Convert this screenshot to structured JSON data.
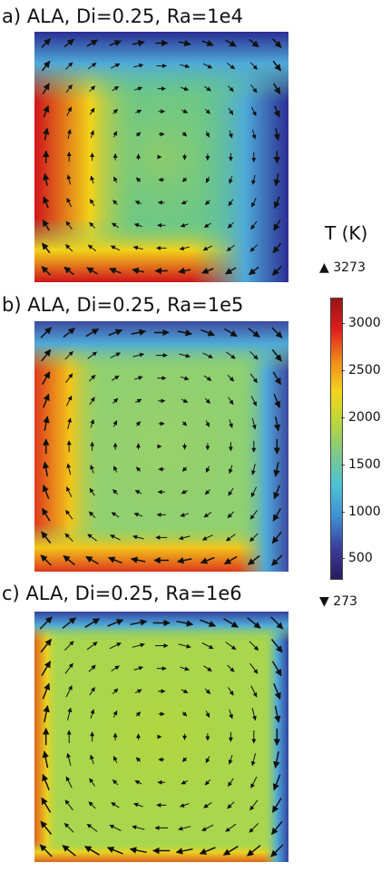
{
  "chart_data": [
    {
      "type": "heatmap",
      "title": "a) ALA, Di=0.25, Ra=1e4",
      "colors": {
        "bg": "#67c78a",
        "hot": "#d0141c",
        "cold": "#2b2e93",
        "warm": "#f2d21a",
        "center": "#8ecb6c"
      },
      "hot_width": 0.22,
      "hot_bottom": 0.16,
      "cold_width": 0.38,
      "cold_top": 0.14
    },
    {
      "type": "heatmap",
      "title": "b) ALA, Di=0.25, Ra=1e5",
      "colors": {
        "bg": "#8fd070",
        "hot": "#de3a1e",
        "cold": "#3d4aa0",
        "warm": "#f2c51a",
        "center": "#9ad16a"
      },
      "hot_width": 0.14,
      "hot_bottom": 0.12,
      "cold_width": 0.2,
      "cold_top": 0.1
    },
    {
      "type": "heatmap",
      "title": "c) ALA, Di=0.25, Ra=1e6",
      "colors": {
        "bg": "#a8d64e",
        "hot": "#e0641c",
        "cold": "#3243a0",
        "warm": "#e8d325",
        "center": "#b3d63e"
      },
      "hot_width": 0.05,
      "hot_bottom": 0.05,
      "cold_width": 0.1,
      "cold_top": 0.06
    }
  ],
  "colorbar": {
    "title": "T (K)",
    "max_label": "▲ 3273",
    "min_label": "▼ 273",
    "ticks": [
      "3000",
      "2500",
      "2000",
      "1500",
      "1000",
      "500"
    ],
    "tick_values": [
      3000,
      2500,
      2000,
      1500,
      1000,
      500
    ],
    "range": [
      273,
      3273
    ],
    "colors": [
      "#2b1a5e",
      "#3a3f9c",
      "#3f8fd2",
      "#4cc2d6",
      "#7cc98a",
      "#b8d63c",
      "#f4d61a",
      "#f08a1a",
      "#e01e1e",
      "#9a1414"
    ]
  }
}
